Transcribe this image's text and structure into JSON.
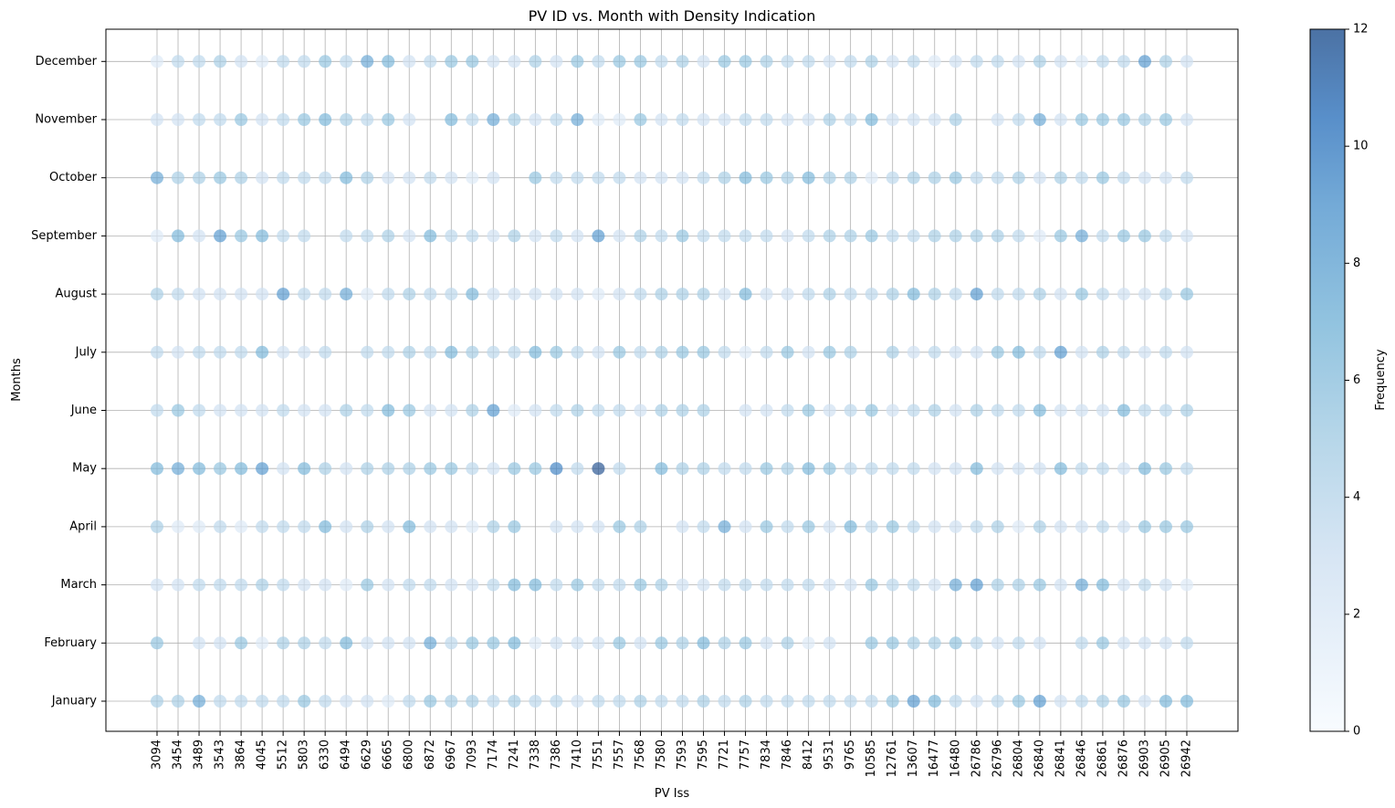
{
  "chart_data": {
    "type": "scatter",
    "title": "PV ID vs. Month with Density Indication",
    "xlabel": "PV Iss",
    "ylabel": "Months",
    "colorbar_label": "Frequency",
    "colorbar_range": [
      0,
      12
    ],
    "colorbar_ticks": [
      "0",
      "2",
      "4",
      "6",
      "8",
      "10",
      "12"
    ],
    "colormap": "Blues",
    "grid": true,
    "x_categories": [
      "3094",
      "3454",
      "3489",
      "3543",
      "3864",
      "4045",
      "5512",
      "5803",
      "6330",
      "6494",
      "6629",
      "6665",
      "6800",
      "6872",
      "6967",
      "7093",
      "7174",
      "7241",
      "7338",
      "7386",
      "7410",
      "7551",
      "7557",
      "7568",
      "7580",
      "7593",
      "7595",
      "7721",
      "7757",
      "7834",
      "7846",
      "8412",
      "9531",
      "9765",
      "10585",
      "12761",
      "13607",
      "16477",
      "16480",
      "26786",
      "26796",
      "26804",
      "26840",
      "26841",
      "26846",
      "26861",
      "26876",
      "26903",
      "26905",
      "26942"
    ],
    "y_categories": [
      "January",
      "February",
      "March",
      "April",
      "May",
      "June",
      "July",
      "August",
      "September",
      "October",
      "November",
      "December"
    ],
    "frequency": [
      [
        5,
        5,
        8,
        4,
        4,
        4,
        4,
        6,
        4,
        3,
        3,
        2,
        4,
        6,
        5,
        5,
        4,
        5,
        4,
        4,
        3,
        4,
        4,
        5,
        4,
        4,
        5,
        4,
        5,
        4,
        4,
        4,
        4,
        4,
        4,
        6,
        9,
        7,
        4,
        3,
        4,
        6,
        9,
        3,
        4,
        5,
        6,
        3,
        7,
        7
      ],
      [
        6,
        0,
        3,
        3,
        6,
        2,
        5,
        5,
        4,
        7,
        3,
        3,
        3,
        8,
        4,
        6,
        6,
        7,
        2,
        3,
        3,
        3,
        6,
        3,
        6,
        5,
        7,
        5,
        6,
        3,
        5,
        2,
        3,
        0,
        6,
        6,
        5,
        5,
        6,
        4,
        3,
        4,
        3,
        0,
        4,
        6,
        3,
        3,
        3,
        4
      ],
      [
        3,
        3,
        4,
        4,
        4,
        5,
        4,
        3,
        3,
        2,
        6,
        3,
        4,
        4,
        3,
        3,
        4,
        7,
        7,
        4,
        6,
        4,
        4,
        6,
        5,
        3,
        3,
        4,
        4,
        4,
        4,
        4,
        3,
        3,
        6,
        4,
        4,
        3,
        8,
        9,
        5,
        5,
        6,
        3,
        8,
        7,
        3,
        4,
        3,
        2
      ],
      [
        5,
        2,
        2,
        4,
        2,
        4,
        4,
        4,
        7,
        3,
        5,
        3,
        7,
        3,
        3,
        2,
        5,
        6,
        0,
        3,
        3,
        3,
        6,
        5,
        0,
        3,
        4,
        8,
        3,
        6,
        4,
        6,
        3,
        7,
        4,
        6,
        4,
        3,
        3,
        4,
        5,
        2,
        5,
        3,
        3,
        4,
        3,
        6,
        6,
        6
      ],
      [
        7,
        8,
        7,
        6,
        7,
        9,
        3,
        7,
        5,
        3,
        5,
        5,
        5,
        6,
        6,
        4,
        3,
        6,
        6,
        10,
        4,
        12,
        4,
        0,
        7,
        5,
        5,
        4,
        4,
        6,
        5,
        7,
        6,
        4,
        4,
        4,
        4,
        3,
        3,
        7,
        3,
        3,
        3,
        7,
        4,
        4,
        3,
        7,
        6,
        4
      ],
      [
        4,
        6,
        4,
        3,
        3,
        3,
        4,
        3,
        3,
        5,
        4,
        7,
        6,
        3,
        3,
        5,
        9,
        2,
        3,
        4,
        5,
        4,
        4,
        3,
        5,
        5,
        5,
        0,
        3,
        3,
        4,
        6,
        3,
        4,
        6,
        3,
        4,
        5,
        3,
        5,
        4,
        4,
        7,
        3,
        3,
        3,
        7,
        4,
        4,
        5
      ],
      [
        4,
        3,
        4,
        4,
        4,
        7,
        3,
        3,
        4,
        0,
        4,
        4,
        5,
        4,
        7,
        5,
        4,
        4,
        7,
        6,
        4,
        3,
        6,
        4,
        5,
        6,
        6,
        4,
        2,
        4,
        6,
        3,
        6,
        5,
        0,
        5,
        3,
        4,
        3,
        3,
        6,
        7,
        4,
        9,
        3,
        5,
        4,
        3,
        4,
        3
      ],
      [
        5,
        4,
        3,
        3,
        3,
        3,
        9,
        4,
        4,
        8,
        2,
        4,
        5,
        4,
        4,
        7,
        3,
        3,
        3,
        3,
        3,
        2,
        3,
        4,
        5,
        5,
        5,
        3,
        7,
        3,
        3,
        4,
        5,
        4,
        4,
        5,
        7,
        5,
        4,
        9,
        4,
        4,
        5,
        3,
        6,
        4,
        3,
        3,
        4,
        6
      ],
      [
        2,
        7,
        3,
        9,
        6,
        7,
        4,
        4,
        0,
        4,
        4,
        5,
        3,
        7,
        4,
        4,
        3,
        5,
        3,
        4,
        3,
        9,
        3,
        5,
        4,
        6,
        4,
        4,
        4,
        4,
        3,
        4,
        5,
        5,
        6,
        4,
        4,
        5,
        5,
        5,
        5,
        4,
        2,
        6,
        8,
        4,
        6,
        6,
        4,
        3
      ],
      [
        8,
        5,
        5,
        6,
        5,
        3,
        4,
        4,
        4,
        7,
        5,
        3,
        3,
        4,
        3,
        2,
        3,
        0,
        6,
        4,
        4,
        4,
        4,
        3,
        3,
        3,
        4,
        5,
        7,
        6,
        5,
        7,
        5,
        5,
        2,
        4,
        5,
        5,
        6,
        4,
        4,
        5,
        3,
        5,
        4,
        6,
        4,
        3,
        3,
        4
      ],
      [
        3,
        3,
        4,
        4,
        6,
        3,
        4,
        6,
        7,
        5,
        4,
        6,
        3,
        0,
        7,
        4,
        8,
        5,
        3,
        4,
        8,
        2,
        2,
        6,
        3,
        4,
        3,
        3,
        4,
        4,
        3,
        3,
        5,
        4,
        7,
        3,
        3,
        3,
        5,
        0,
        3,
        4,
        8,
        3,
        6,
        6,
        6,
        5,
        6,
        3
      ],
      [
        2,
        4,
        4,
        5,
        3,
        2,
        4,
        4,
        6,
        4,
        8,
        7,
        3,
        4,
        6,
        6,
        3,
        3,
        5,
        3,
        6,
        4,
        6,
        6,
        4,
        5,
        3,
        6,
        6,
        5,
        4,
        4,
        3,
        4,
        5,
        3,
        4,
        2,
        3,
        4,
        4,
        3,
        5,
        3,
        2,
        4,
        4,
        9,
        5,
        3
      ]
    ]
  }
}
